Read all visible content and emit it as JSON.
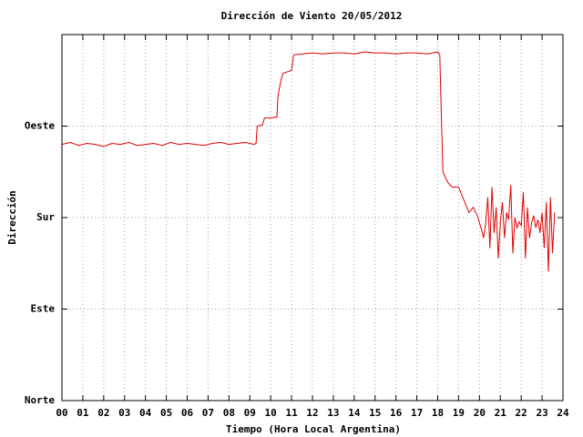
{
  "chart_data": {
    "type": "line",
    "title": "Dirección de Viento 20/05/2012",
    "x_label": "Tiempo (Hora Local Argentina)",
    "y_label": "Dirección",
    "xlim": [
      0,
      24
    ],
    "xticks": [
      {
        "value": 0,
        "label": "00"
      },
      {
        "value": 1,
        "label": "01"
      },
      {
        "value": 2,
        "label": "02"
      },
      {
        "value": 3,
        "label": "03"
      },
      {
        "value": 4,
        "label": "04"
      },
      {
        "value": 5,
        "label": "05"
      },
      {
        "value": 6,
        "label": "06"
      },
      {
        "value": 7,
        "label": "07"
      },
      {
        "value": 8,
        "label": "08"
      },
      {
        "value": 9,
        "label": "09"
      },
      {
        "value": 10,
        "label": "10"
      },
      {
        "value": 11,
        "label": "11"
      },
      {
        "value": 12,
        "label": "12"
      },
      {
        "value": 13,
        "label": "13"
      },
      {
        "value": 14,
        "label": "14"
      },
      {
        "value": 15,
        "label": "15"
      },
      {
        "value": 16,
        "label": "16"
      },
      {
        "value": 17,
        "label": "17"
      },
      {
        "value": 18,
        "label": "18"
      },
      {
        "value": 19,
        "label": "19"
      },
      {
        "value": 20,
        "label": "20"
      },
      {
        "value": 21,
        "label": "21"
      },
      {
        "value": 22,
        "label": "22"
      },
      {
        "value": 23,
        "label": "23"
      },
      {
        "value": 24,
        "label": "24"
      }
    ],
    "ylim": [
      0,
      360
    ],
    "yticks": [
      {
        "value": 0,
        "label": "Norte"
      },
      {
        "value": 90,
        "label": "Este"
      },
      {
        "value": 180,
        "label": "Sur"
      },
      {
        "value": 270,
        "label": "Oeste"
      }
    ],
    "grid": true,
    "series": [
      {
        "color": "#e00000",
        "x": [
          0,
          0.4,
          0.8,
          1.2,
          1.6,
          2,
          2.4,
          2.8,
          3.2,
          3.6,
          4,
          4.4,
          4.8,
          5.2,
          5.6,
          6,
          6.4,
          6.8,
          7.2,
          7.6,
          8,
          8.4,
          8.8,
          9.2,
          9.3,
          9.35,
          9.6,
          9.7,
          10,
          10.3,
          10.35,
          10.5,
          10.6,
          10.9,
          11,
          11.1,
          11.5,
          12,
          12.5,
          13,
          13.5,
          14,
          14.5,
          15,
          15.5,
          16,
          16.5,
          17,
          17.5,
          18,
          18.1,
          18.15,
          18.25,
          18.4,
          18.5,
          18.7,
          19,
          19.1,
          19.3,
          19.5,
          19.7,
          19.9,
          20.1,
          20.2,
          20.3,
          20.4,
          20.5,
          20.6,
          20.7,
          20.8,
          20.9,
          21,
          21.1,
          21.2,
          21.3,
          21.4,
          21.5,
          21.6,
          21.7,
          21.8,
          21.9,
          22,
          22.1,
          22.2,
          22.3,
          22.4,
          22.5,
          22.6,
          22.7,
          22.8,
          22.9,
          23,
          23.1,
          23.2,
          23.3,
          23.4,
          23.5,
          23.6
        ],
        "values": [
          252,
          254,
          251,
          253,
          252,
          250,
          253,
          252,
          254,
          251,
          252,
          253,
          251,
          254,
          252,
          253,
          252,
          251,
          253,
          254,
          252,
          253,
          254,
          252,
          253,
          270,
          271,
          278,
          278,
          279,
          300,
          316,
          322,
          324,
          325,
          340,
          341,
          342,
          341,
          342,
          342,
          341,
          343,
          342,
          342,
          341,
          342,
          342,
          341,
          343,
          340,
          300,
          225,
          218,
          214,
          210,
          210,
          205,
          195,
          185,
          190,
          182,
          168,
          160,
          175,
          200,
          150,
          210,
          165,
          190,
          140,
          175,
          195,
          160,
          185,
          178,
          212,
          145,
          180,
          170,
          176,
          172,
          205,
          140,
          190,
          160,
          175,
          182,
          170,
          178,
          165,
          185,
          150,
          195,
          127,
          200,
          145,
          185
        ]
      }
    ]
  }
}
